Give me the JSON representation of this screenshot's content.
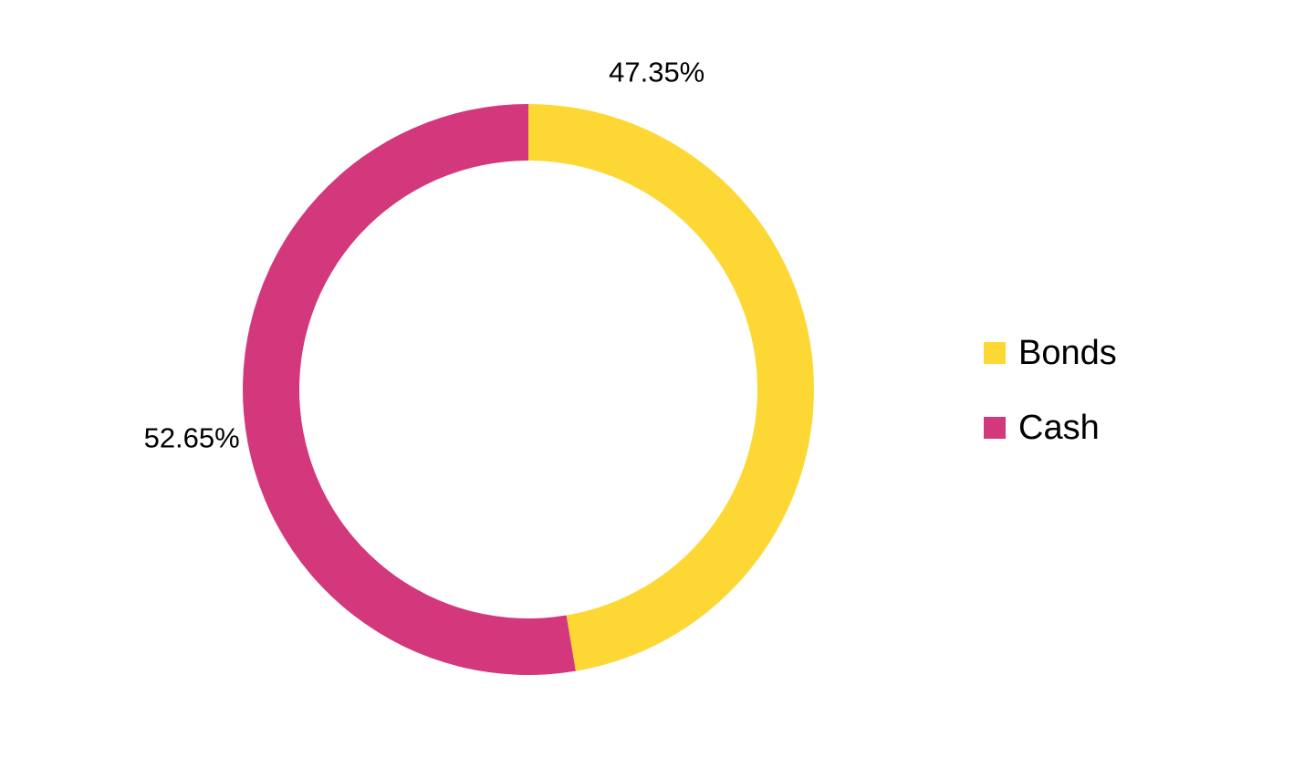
{
  "chart_data": {
    "type": "pie",
    "variant": "doughnut",
    "title": "",
    "categories": [
      "Bonds",
      "Cash"
    ],
    "values": [
      47.35,
      52.65
    ],
    "labels": [
      "47.35%",
      "52.65%"
    ],
    "colors": [
      "#FDD835",
      "#D2387B"
    ],
    "legend": {
      "placement": "right",
      "items": [
        {
          "label": "Bonds",
          "color": "#FDD835"
        },
        {
          "label": "Cash",
          "color": "#D2387B"
        }
      ]
    },
    "start_angle": "12 o'clock",
    "direction": "clockwise"
  }
}
